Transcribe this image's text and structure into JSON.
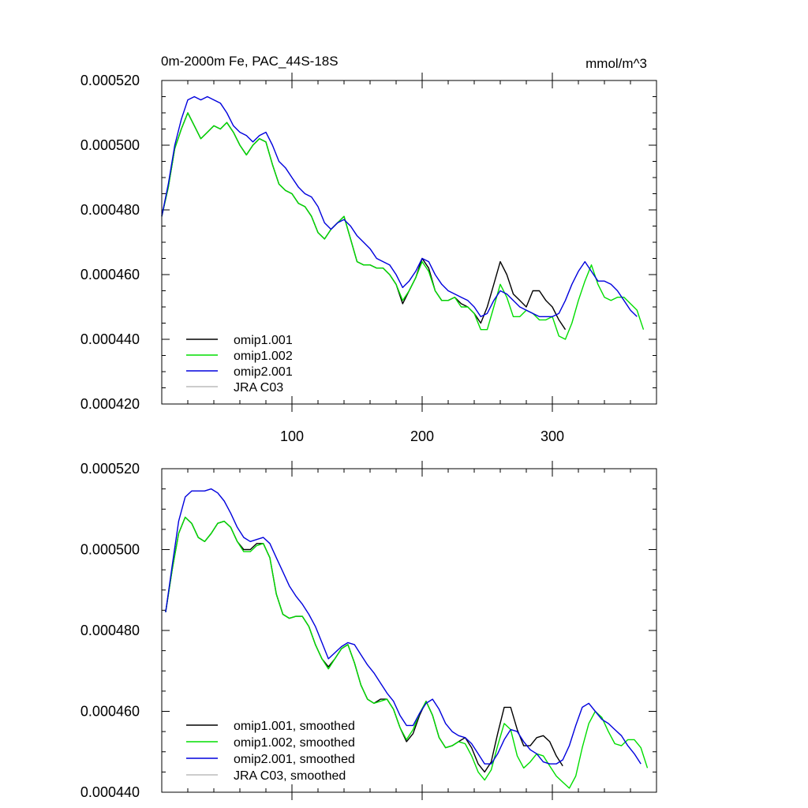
{
  "chart_data": [
    {
      "type": "line",
      "title_left": "0m-2000m Fe, PAC_44S-18S",
      "title_right": "mmol/m^3",
      "xlim": [
        0,
        380
      ],
      "ylim": [
        0.00042,
        0.00052
      ],
      "x_ticks": [
        100,
        200,
        300
      ],
      "x_tick_labels": [
        "100",
        "200",
        "300"
      ],
      "y_ticks": [
        0.00042,
        0.00044,
        0.00046,
        0.00048,
        0.0005,
        0.00052
      ],
      "y_tick_labels": [
        "0.000420",
        "0.000440",
        "0.000460",
        "0.000480",
        "0.000500",
        "0.000520"
      ],
      "legend": [
        "omip1.001",
        "omip1.002",
        "omip2.001",
        "JRA C03"
      ],
      "series": [
        {
          "name": "omip1.001",
          "color": "#000000",
          "x": [
            0,
            5,
            10,
            15,
            20,
            25,
            30,
            35,
            40,
            45,
            50,
            55,
            60,
            65,
            70,
            75,
            80,
            85,
            90,
            95,
            100,
            105,
            110,
            115,
            120,
            125,
            130,
            135,
            140,
            145,
            150,
            155,
            160,
            165,
            170,
            175,
            180,
            185,
            190,
            195,
            200,
            205,
            210,
            215,
            220,
            225,
            230,
            235,
            240,
            245,
            250,
            255,
            260,
            265,
            270,
            275,
            280,
            285,
            290,
            295,
            300,
            305,
            310
          ],
          "values": [
            0.000478,
            0.000487,
            0.000499,
            0.000505,
            0.00051,
            0.000506,
            0.000502,
            0.000504,
            0.000506,
            0.000505,
            0.000507,
            0.000504,
            0.0005,
            0.000497,
            0.0005,
            0.000502,
            0.000501,
            0.000494,
            0.000488,
            0.000486,
            0.000485,
            0.000482,
            0.000481,
            0.000478,
            0.000473,
            0.000471,
            0.000474,
            0.000476,
            0.000478,
            0.000471,
            0.000464,
            0.000463,
            0.000463,
            0.000462,
            0.000462,
            0.00046,
            0.000457,
            0.000451,
            0.000455,
            0.000459,
            0.000465,
            0.000462,
            0.000455,
            0.000452,
            0.000452,
            0.000453,
            0.000451,
            0.00045,
            0.000448,
            0.000445,
            0.00045,
            0.000457,
            0.000464,
            0.00046,
            0.000454,
            0.000452,
            0.00045,
            0.000455,
            0.000455,
            0.000452,
            0.00045,
            0.000446,
            0.000443
          ]
        },
        {
          "name": "omip1.002",
          "color": "#00dd00",
          "x": [
            0,
            5,
            10,
            15,
            20,
            25,
            30,
            35,
            40,
            45,
            50,
            55,
            60,
            65,
            70,
            75,
            80,
            85,
            90,
            95,
            100,
            105,
            110,
            115,
            120,
            125,
            130,
            135,
            140,
            145,
            150,
            155,
            160,
            165,
            170,
            175,
            180,
            185,
            190,
            195,
            200,
            205,
            210,
            215,
            220,
            225,
            230,
            235,
            240,
            245,
            250,
            255,
            260,
            265,
            270,
            275,
            280,
            285,
            290,
            295,
            300,
            305,
            310,
            315,
            320,
            325,
            330,
            335,
            340,
            345,
            350,
            355,
            360,
            365,
            370
          ],
          "values": [
            0.000478,
            0.000487,
            0.000499,
            0.000505,
            0.00051,
            0.000506,
            0.000502,
            0.000504,
            0.000506,
            0.000505,
            0.000507,
            0.000504,
            0.0005,
            0.000497,
            0.0005,
            0.000502,
            0.000501,
            0.000494,
            0.000488,
            0.000486,
            0.000485,
            0.000482,
            0.000481,
            0.000478,
            0.000473,
            0.000471,
            0.000474,
            0.000476,
            0.000478,
            0.000471,
            0.000464,
            0.000463,
            0.000463,
            0.000462,
            0.000462,
            0.00046,
            0.000457,
            0.000452,
            0.000455,
            0.000459,
            0.000464,
            0.000461,
            0.000455,
            0.000452,
            0.000452,
            0.000453,
            0.00045,
            0.00045,
            0.000448,
            0.000443,
            0.000443,
            0.00045,
            0.000457,
            0.000453,
            0.000447,
            0.000447,
            0.000449,
            0.000448,
            0.000446,
            0.000446,
            0.000447,
            0.000441,
            0.00044,
            0.000445,
            0.000452,
            0.000458,
            0.000463,
            0.000457,
            0.000453,
            0.000452,
            0.000453,
            0.000453,
            0.000451,
            0.000449,
            0.000443
          ]
        },
        {
          "name": "omip2.001",
          "color": "#0000dd",
          "x": [
            0,
            5,
            10,
            15,
            20,
            25,
            30,
            35,
            40,
            45,
            50,
            55,
            60,
            65,
            70,
            75,
            80,
            85,
            90,
            95,
            100,
            105,
            110,
            115,
            120,
            125,
            130,
            135,
            140,
            145,
            150,
            155,
            160,
            165,
            170,
            175,
            180,
            185,
            190,
            195,
            200,
            205,
            210,
            215,
            220,
            225,
            230,
            235,
            240,
            245,
            250,
            255,
            260,
            265,
            270,
            275,
            280,
            285,
            290,
            295,
            300,
            305,
            310,
            315,
            320,
            325,
            330,
            335,
            340,
            345,
            350,
            355,
            360,
            365
          ],
          "values": [
            0.000478,
            0.000488,
            0.0005,
            0.000508,
            0.000514,
            0.000515,
            0.000514,
            0.000515,
            0.000514,
            0.000513,
            0.00051,
            0.000506,
            0.000504,
            0.000503,
            0.000501,
            0.000503,
            0.000504,
            0.0005,
            0.000495,
            0.000493,
            0.00049,
            0.000487,
            0.000485,
            0.000484,
            0.000481,
            0.000476,
            0.000474,
            0.000476,
            0.000477,
            0.000475,
            0.000472,
            0.00047,
            0.000468,
            0.000465,
            0.000464,
            0.000463,
            0.00046,
            0.000456,
            0.000458,
            0.000461,
            0.000465,
            0.000464,
            0.00046,
            0.000457,
            0.000455,
            0.000454,
            0.000453,
            0.000452,
            0.00045,
            0.000447,
            0.000448,
            0.000452,
            0.000455,
            0.000454,
            0.000452,
            0.00045,
            0.000449,
            0.000448,
            0.000447,
            0.000447,
            0.000447,
            0.000448,
            0.000452,
            0.000457,
            0.000461,
            0.000464,
            0.000461,
            0.000458,
            0.000458,
            0.000457,
            0.000455,
            0.000452,
            0.000449,
            0.000447
          ]
        },
        {
          "name": "JRA C03",
          "color": "#bbbbbb",
          "x": [],
          "values": []
        }
      ]
    },
    {
      "type": "line",
      "xlim": [
        0,
        380
      ],
      "ylim": [
        0.00044,
        0.00052
      ],
      "x_ticks": [
        100,
        200,
        300
      ],
      "y_ticks": [
        0.00044,
        0.00046,
        0.00048,
        0.0005,
        0.00052
      ],
      "y_tick_labels": [
        "0.000440",
        "0.000460",
        "0.000480",
        "0.000500",
        "0.000520"
      ],
      "legend": [
        "omip1.001, smoothed",
        "omip1.002, smoothed",
        "omip2.001, smoothed",
        "JRA C03, smoothed"
      ],
      "series": [
        {
          "name": "omip1.001, smoothed",
          "color": "#000000",
          "x": [
            3,
            8,
            13,
            18,
            23,
            28,
            33,
            38,
            43,
            48,
            53,
            58,
            63,
            68,
            73,
            78,
            83,
            88,
            93,
            98,
            103,
            108,
            113,
            118,
            123,
            128,
            133,
            138,
            143,
            148,
            153,
            158,
            163,
            168,
            173,
            178,
            183,
            188,
            193,
            198,
            203,
            208,
            213,
            218,
            223,
            228,
            233,
            238,
            243,
            248,
            253,
            258,
            263,
            268,
            273,
            278,
            283,
            288,
            293,
            298,
            303,
            308
          ],
          "values": [
            0.0004845,
            0.000495,
            0.000504,
            0.000508,
            0.0005065,
            0.000503,
            0.000502,
            0.000504,
            0.0005065,
            0.000507,
            0.0005055,
            0.000502,
            0.0005,
            0.0005,
            0.0005015,
            0.0005015,
            0.000498,
            0.000489,
            0.000484,
            0.000483,
            0.0004835,
            0.0004835,
            0.000481,
            0.0004765,
            0.000473,
            0.000471,
            0.000473,
            0.0004755,
            0.0004765,
            0.000472,
            0.0004665,
            0.000463,
            0.000462,
            0.000463,
            0.000463,
            0.0004605,
            0.000456,
            0.0004525,
            0.0004545,
            0.000459,
            0.0004625,
            0.000459,
            0.0004535,
            0.000451,
            0.0004515,
            0.0004525,
            0.0004535,
            0.000451,
            0.000447,
            0.000445,
            0.0004475,
            0.0004545,
            0.000461,
            0.000461,
            0.0004555,
            0.0004515,
            0.0004515,
            0.0004535,
            0.000454,
            0.0004525,
            0.000449,
            0.0004465
          ]
        },
        {
          "name": "omip1.002, smoothed",
          "color": "#00dd00",
          "x": [
            3,
            8,
            13,
            18,
            23,
            28,
            33,
            38,
            43,
            48,
            53,
            58,
            63,
            68,
            73,
            78,
            83,
            88,
            93,
            98,
            103,
            108,
            113,
            118,
            123,
            128,
            133,
            138,
            143,
            148,
            153,
            158,
            163,
            168,
            173,
            178,
            183,
            188,
            193,
            198,
            203,
            208,
            213,
            218,
            223,
            228,
            233,
            238,
            243,
            248,
            253,
            258,
            263,
            268,
            273,
            278,
            283,
            288,
            293,
            298,
            303,
            308,
            313,
            318,
            323,
            328,
            333,
            338,
            343,
            348,
            353,
            358,
            363,
            368,
            373
          ],
          "values": [
            0.0004845,
            0.000495,
            0.000504,
            0.000508,
            0.0005065,
            0.000503,
            0.000502,
            0.000504,
            0.0005065,
            0.000507,
            0.0005055,
            0.000502,
            0.0004995,
            0.0004995,
            0.000501,
            0.0005015,
            0.000498,
            0.000489,
            0.000484,
            0.000483,
            0.0004835,
            0.0004835,
            0.000481,
            0.0004765,
            0.000473,
            0.0004705,
            0.000473,
            0.0004755,
            0.0004765,
            0.000472,
            0.0004665,
            0.000463,
            0.000462,
            0.0004625,
            0.000463,
            0.0004605,
            0.000456,
            0.000453,
            0.0004555,
            0.0004595,
            0.0004625,
            0.000459,
            0.0004535,
            0.000451,
            0.0004515,
            0.0004525,
            0.000452,
            0.000449,
            0.000445,
            0.000443,
            0.0004455,
            0.0004515,
            0.000457,
            0.0004555,
            0.000449,
            0.000446,
            0.0004475,
            0.0004495,
            0.000449,
            0.0004465,
            0.000444,
            0.0004425,
            0.000441,
            0.000444,
            0.000451,
            0.000457,
            0.00046,
            0.0004585,
            0.000455,
            0.000452,
            0.0004515,
            0.000453,
            0.000453,
            0.000451,
            0.000446
          ]
        },
        {
          "name": "omip2.001, smoothed",
          "color": "#0000dd",
          "x": [
            3,
            8,
            13,
            18,
            23,
            28,
            33,
            38,
            43,
            48,
            53,
            58,
            63,
            68,
            73,
            78,
            83,
            88,
            93,
            98,
            103,
            108,
            113,
            118,
            123,
            128,
            133,
            138,
            143,
            148,
            153,
            158,
            163,
            168,
            173,
            178,
            183,
            188,
            193,
            198,
            203,
            208,
            213,
            218,
            223,
            228,
            233,
            238,
            243,
            248,
            253,
            258,
            263,
            268,
            273,
            278,
            283,
            288,
            293,
            298,
            303,
            308,
            313,
            318,
            323,
            328,
            333,
            338,
            343,
            348,
            353,
            358,
            363,
            368
          ],
          "values": [
            0.0004845,
            0.000496,
            0.000507,
            0.000513,
            0.0005145,
            0.0005145,
            0.0005145,
            0.000515,
            0.000514,
            0.000512,
            0.000509,
            0.0005055,
            0.000503,
            0.000502,
            0.0005025,
            0.000503,
            0.0005015,
            0.000498,
            0.0004945,
            0.000491,
            0.0004885,
            0.0004865,
            0.000484,
            0.000481,
            0.000477,
            0.000473,
            0.0004745,
            0.000476,
            0.000477,
            0.0004765,
            0.000474,
            0.0004715,
            0.0004695,
            0.000467,
            0.0004645,
            0.0004625,
            0.000459,
            0.0004565,
            0.0004565,
            0.0004595,
            0.000462,
            0.000463,
            0.0004605,
            0.000457,
            0.000455,
            0.000454,
            0.0004535,
            0.000452,
            0.0004495,
            0.000447,
            0.000447,
            0.0004495,
            0.000453,
            0.0004555,
            0.000455,
            0.0004525,
            0.0004505,
            0.0004495,
            0.0004475,
            0.000447,
            0.000447,
            0.000448,
            0.0004515,
            0.0004565,
            0.000461,
            0.000462,
            0.00046,
            0.000458,
            0.000457,
            0.0004555,
            0.000454,
            0.0004515,
            0.0004495,
            0.000447
          ]
        },
        {
          "name": "JRA C03, smoothed",
          "color": "#bbbbbb",
          "x": [],
          "values": []
        }
      ]
    }
  ]
}
